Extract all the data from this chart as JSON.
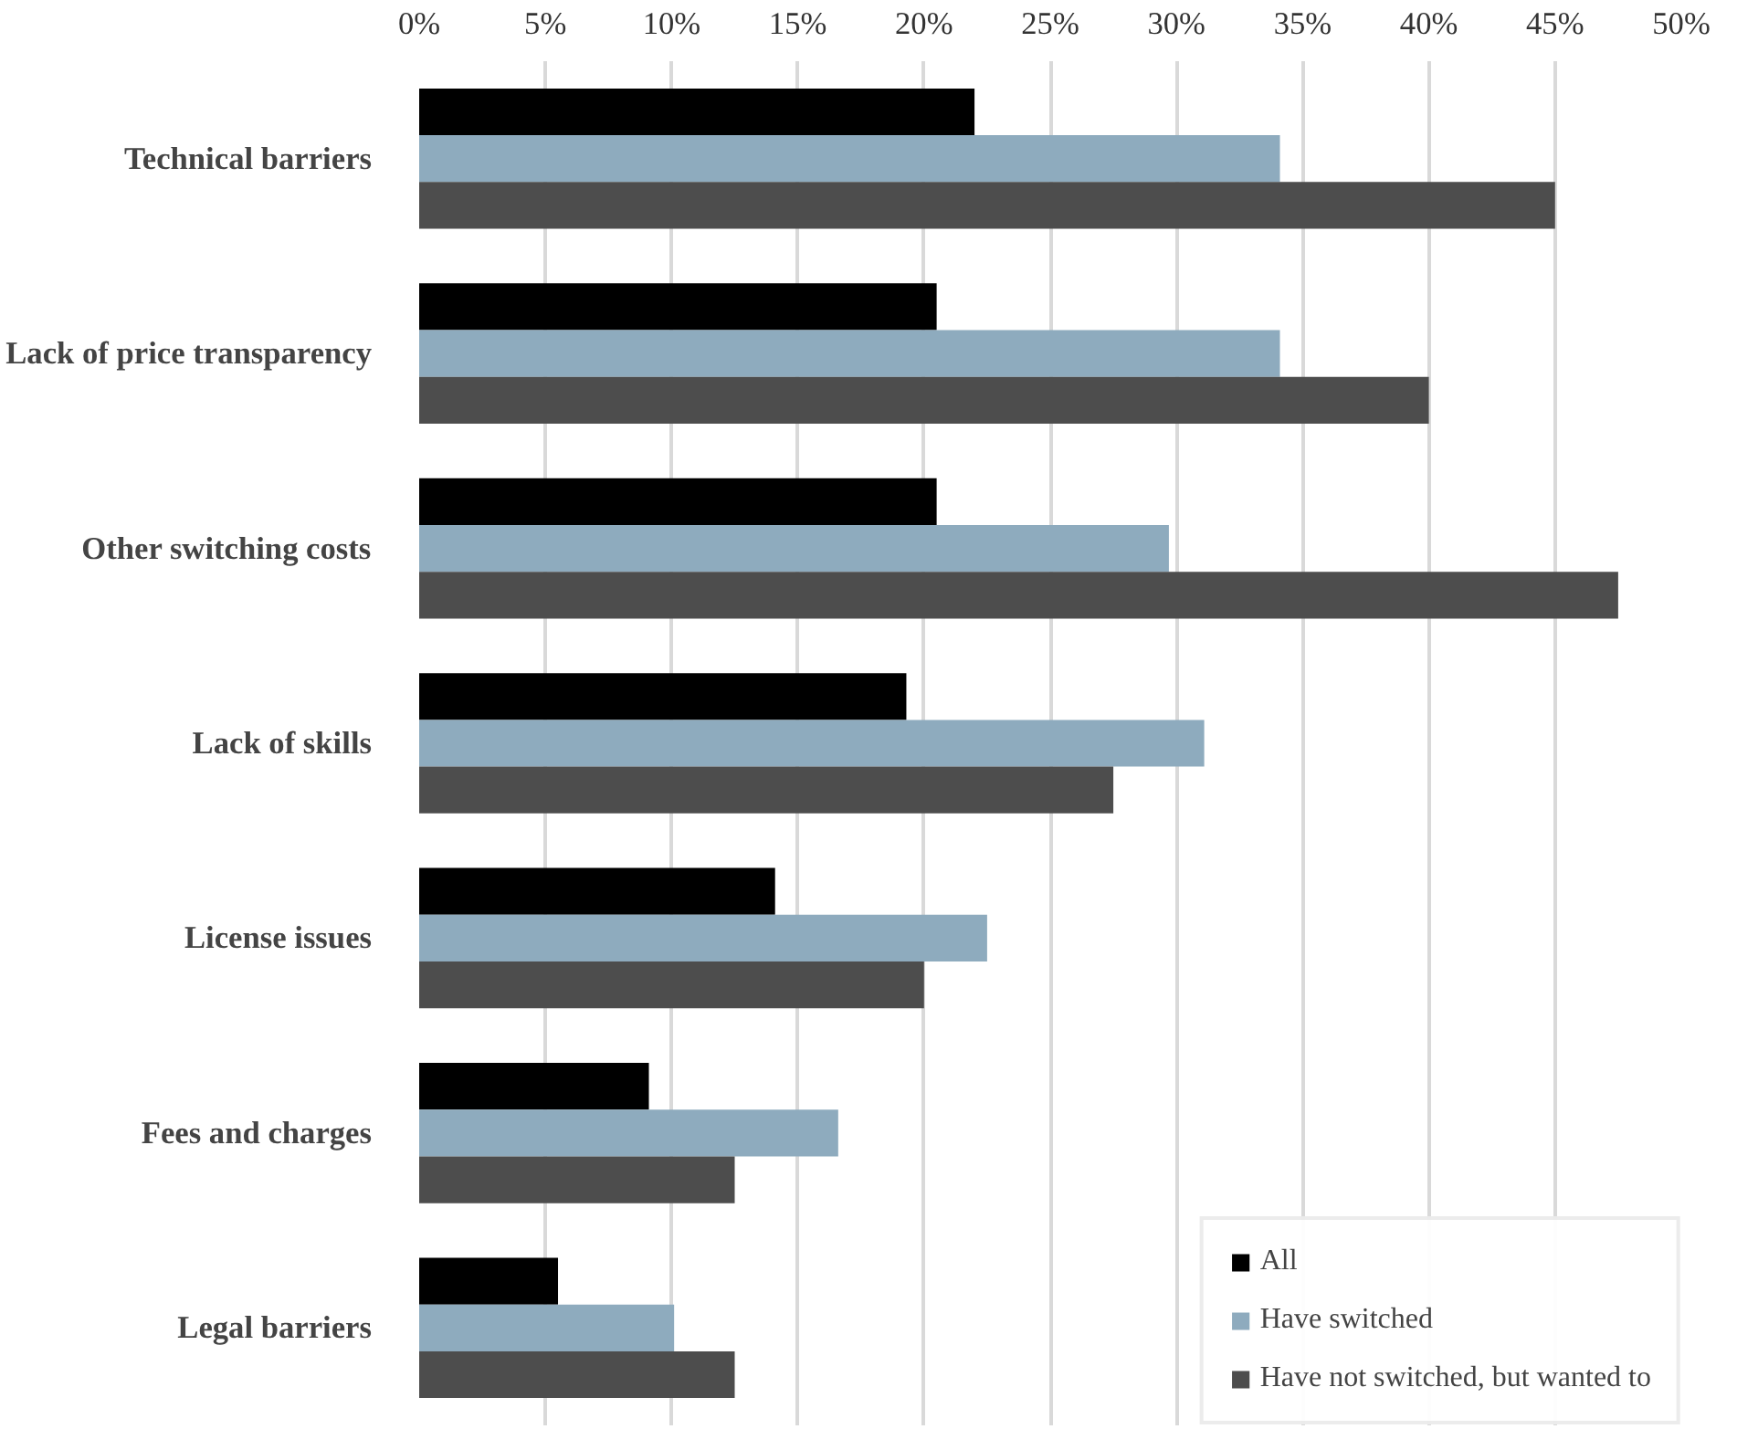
{
  "chart_data": {
    "type": "bar",
    "orientation": "horizontal",
    "categories": [
      "Technical barriers",
      "Lack of price transparency",
      "Other switching costs",
      "Lack of skills",
      "License issues",
      "Fees and charges",
      "Legal barriers"
    ],
    "series": [
      {
        "name": "All",
        "color": "#000000",
        "values": [
          22.0,
          20.5,
          20.5,
          19.3,
          14.1,
          9.1,
          5.5
        ]
      },
      {
        "name": "Have switched",
        "color": "#8eabbe",
        "values": [
          34.1,
          34.1,
          29.7,
          31.1,
          22.5,
          16.6,
          10.1
        ]
      },
      {
        "name": "Have not switched, but wanted to",
        "color": "#4d4d4d",
        "values": [
          45.0,
          40.0,
          47.5,
          27.5,
          20.0,
          12.5,
          12.5
        ]
      }
    ],
    "xlim": [
      0,
      50
    ],
    "xticks": [
      {
        "value": 0,
        "label": "0%"
      },
      {
        "value": 5,
        "label": "5%"
      },
      {
        "value": 10,
        "label": "10%"
      },
      {
        "value": 15,
        "label": "15%"
      },
      {
        "value": 20,
        "label": "20%"
      },
      {
        "value": 25,
        "label": "25%"
      },
      {
        "value": 30,
        "label": "30%"
      },
      {
        "value": 35,
        "label": "35%"
      },
      {
        "value": 40,
        "label": "40%"
      },
      {
        "value": 45,
        "label": "45%"
      },
      {
        "value": 50,
        "label": "50%"
      }
    ],
    "grid": "x",
    "legend": "bottom right"
  }
}
